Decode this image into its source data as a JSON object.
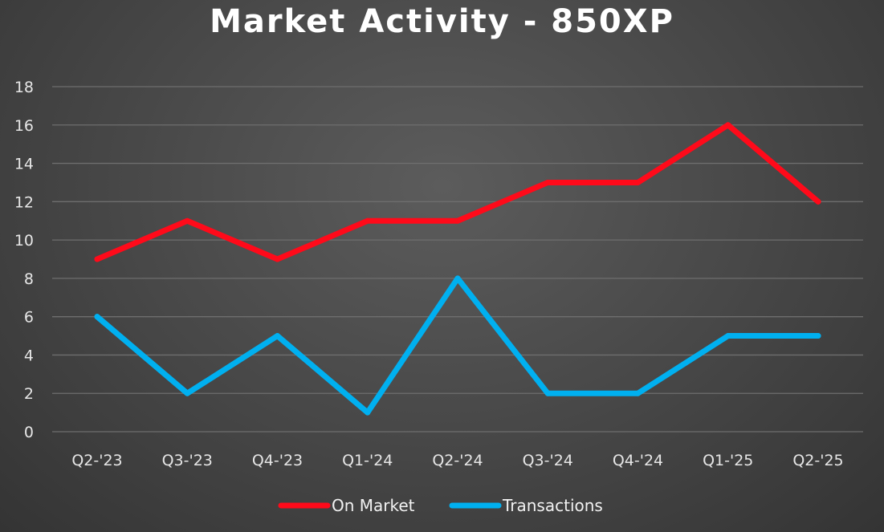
{
  "chart_data": {
    "type": "line",
    "title": "Market Activity - 850XP",
    "xlabel": "",
    "ylabel": "",
    "categories": [
      "Q2-'23",
      "Q3-'23",
      "Q4-'23",
      "Q1-'24",
      "Q2-'24",
      "Q3-'24",
      "Q4-'24",
      "Q1-'25",
      "Q2-'25"
    ],
    "ylim": [
      0,
      18
    ],
    "yticks": [
      0,
      2,
      4,
      6,
      8,
      10,
      12,
      14,
      16,
      18
    ],
    "grid": true,
    "legend_position": "bottom",
    "series": [
      {
        "name": "On Market",
        "color": "#ff0a1a",
        "values": [
          9,
          11,
          9,
          11,
          11,
          13,
          13,
          16,
          12
        ]
      },
      {
        "name": "Transactions",
        "color": "#00b0f0",
        "values": [
          6,
          2,
          5,
          1,
          8,
          2,
          2,
          5,
          5
        ]
      }
    ]
  }
}
